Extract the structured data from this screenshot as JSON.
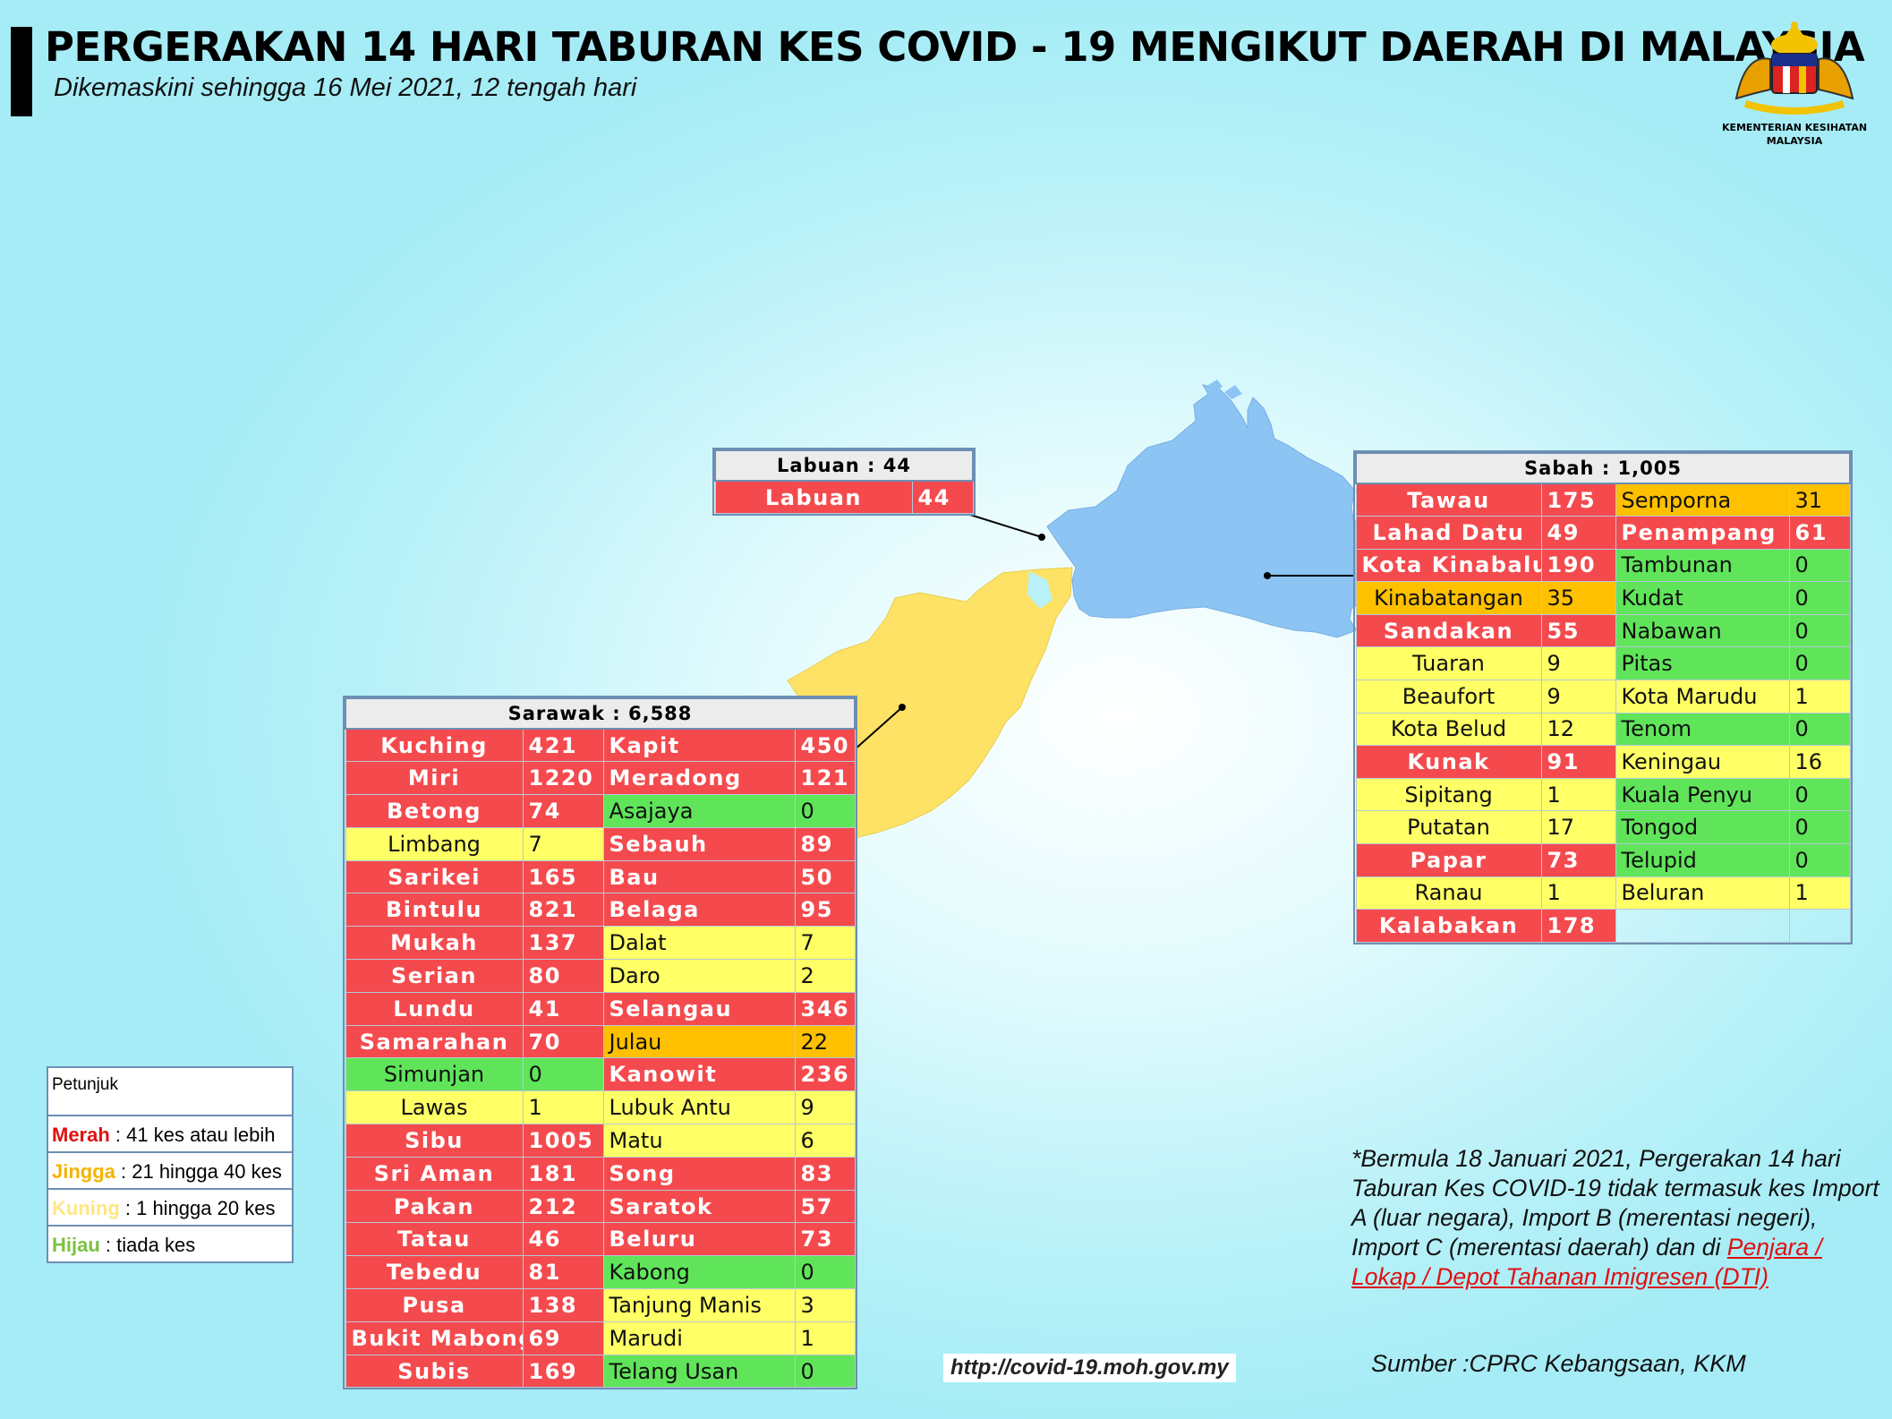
{
  "header": {
    "title": "PERGERAKAN 14 HARI TABURAN KES COVID - 19 MENGIKUT DAERAH DI MALAYSIA",
    "subtitle": "Dikemaskini sehingga 16 Mei 2021, 12 tengah hari",
    "logo_caption_1": "KEMENTERIAN KESIHATAN",
    "logo_caption_2": "MALAYSIA"
  },
  "colors": {
    "merah": "#f44a4e",
    "jingga": "#ffc000",
    "kuning": "#ffff66",
    "hijau": "#60e55a",
    "sabah_map": "#8cc4f4",
    "sarawak_map": "#fde265"
  },
  "labuan": {
    "header": "Labuan : 44",
    "rows": [
      {
        "name": "Labuan",
        "value": "44",
        "level": "r"
      }
    ]
  },
  "sabah": {
    "header": "Sabah : 1,005",
    "rows": [
      [
        {
          "name": "Tawau",
          "value": "175",
          "level": "r"
        },
        {
          "name": "Semporna",
          "value": "31",
          "level": "o"
        }
      ],
      [
        {
          "name": "Lahad Datu",
          "value": "49",
          "level": "r"
        },
        {
          "name": "Penampang",
          "value": "61",
          "level": "r"
        }
      ],
      [
        {
          "name": "Kota Kinabalu",
          "value": "190",
          "level": "r"
        },
        {
          "name": "Tambunan",
          "value": "0",
          "level": "g"
        }
      ],
      [
        {
          "name": "Kinabatangan",
          "value": "35",
          "level": "o"
        },
        {
          "name": "Kudat",
          "value": "0",
          "level": "g"
        }
      ],
      [
        {
          "name": "Sandakan",
          "value": "55",
          "level": "r"
        },
        {
          "name": "Nabawan",
          "value": "0",
          "level": "g"
        }
      ],
      [
        {
          "name": "Tuaran",
          "value": "9",
          "level": "y"
        },
        {
          "name": "Pitas",
          "value": "0",
          "level": "g"
        }
      ],
      [
        {
          "name": "Beaufort",
          "value": "9",
          "level": "y"
        },
        {
          "name": "Kota Marudu",
          "value": "1",
          "level": "y"
        }
      ],
      [
        {
          "name": "Kota Belud",
          "value": "12",
          "level": "y"
        },
        {
          "name": "Tenom",
          "value": "0",
          "level": "g"
        }
      ],
      [
        {
          "name": "Kunak",
          "value": "91",
          "level": "r"
        },
        {
          "name": "Keningau",
          "value": "16",
          "level": "y"
        }
      ],
      [
        {
          "name": "Sipitang",
          "value": "1",
          "level": "y"
        },
        {
          "name": "Kuala Penyu",
          "value": "0",
          "level": "g"
        }
      ],
      [
        {
          "name": "Putatan",
          "value": "17",
          "level": "y"
        },
        {
          "name": "Tongod",
          "value": "0",
          "level": "g"
        }
      ],
      [
        {
          "name": "Papar",
          "value": "73",
          "level": "r"
        },
        {
          "name": "Telupid",
          "value": "0",
          "level": "g"
        }
      ],
      [
        {
          "name": "Ranau",
          "value": "1",
          "level": "y"
        },
        {
          "name": "Beluran",
          "value": "1",
          "level": "y"
        }
      ],
      [
        {
          "name": "Kalabakan",
          "value": "178",
          "level": "r"
        },
        {
          "name": "",
          "value": "",
          "level": "blank"
        }
      ]
    ]
  },
  "sarawak": {
    "header": "Sarawak : 6,588",
    "rows": [
      [
        {
          "name": "Kuching",
          "value": "421",
          "level": "r"
        },
        {
          "name": "Kapit",
          "value": "450",
          "level": "r"
        }
      ],
      [
        {
          "name": "Miri",
          "value": "1220",
          "level": "r"
        },
        {
          "name": "Meradong",
          "value": "121",
          "level": "r"
        }
      ],
      [
        {
          "name": "Betong",
          "value": "74",
          "level": "r"
        },
        {
          "name": "Asajaya",
          "value": "0",
          "level": "g"
        }
      ],
      [
        {
          "name": "Limbang",
          "value": "7",
          "level": "y"
        },
        {
          "name": "Sebauh",
          "value": "89",
          "level": "r"
        }
      ],
      [
        {
          "name": "Sarikei",
          "value": "165",
          "level": "r"
        },
        {
          "name": "Bau",
          "value": "50",
          "level": "r"
        }
      ],
      [
        {
          "name": "Bintulu",
          "value": "821",
          "level": "r"
        },
        {
          "name": "Belaga",
          "value": "95",
          "level": "r"
        }
      ],
      [
        {
          "name": "Mukah",
          "value": "137",
          "level": "r"
        },
        {
          "name": "Dalat",
          "value": "7",
          "level": "y"
        }
      ],
      [
        {
          "name": "Serian",
          "value": "80",
          "level": "r"
        },
        {
          "name": "Daro",
          "value": "2",
          "level": "y"
        }
      ],
      [
        {
          "name": "Lundu",
          "value": "41",
          "level": "r"
        },
        {
          "name": "Selangau",
          "value": "346",
          "level": "r"
        }
      ],
      [
        {
          "name": "Samarahan",
          "value": "70",
          "level": "r"
        },
        {
          "name": "Julau",
          "value": "22",
          "level": "o"
        }
      ],
      [
        {
          "name": "Simunjan",
          "value": "0",
          "level": "g"
        },
        {
          "name": "Kanowit",
          "value": "236",
          "level": "r"
        }
      ],
      [
        {
          "name": "Lawas",
          "value": "1",
          "level": "y"
        },
        {
          "name": "Lubuk Antu",
          "value": "9",
          "level": "y"
        }
      ],
      [
        {
          "name": "Sibu",
          "value": "1005",
          "level": "r"
        },
        {
          "name": "Matu",
          "value": "6",
          "level": "y"
        }
      ],
      [
        {
          "name": "Sri Aman",
          "value": "181",
          "level": "r"
        },
        {
          "name": "Song",
          "value": "83",
          "level": "r"
        }
      ],
      [
        {
          "name": "Pakan",
          "value": "212",
          "level": "r"
        },
        {
          "name": "Saratok",
          "value": "57",
          "level": "r"
        }
      ],
      [
        {
          "name": "Tatau",
          "value": "46",
          "level": "r"
        },
        {
          "name": "Beluru",
          "value": "73",
          "level": "r"
        }
      ],
      [
        {
          "name": "Tebedu",
          "value": "81",
          "level": "r"
        },
        {
          "name": "Kabong",
          "value": "0",
          "level": "g"
        }
      ],
      [
        {
          "name": "Pusa",
          "value": "138",
          "level": "r"
        },
        {
          "name": "Tanjung Manis",
          "value": "3",
          "level": "y"
        }
      ],
      [
        {
          "name": "Bukit Mabong",
          "value": "69",
          "level": "r"
        },
        {
          "name": "Marudi",
          "value": "1",
          "level": "y"
        }
      ],
      [
        {
          "name": "Subis",
          "value": "169",
          "level": "r"
        },
        {
          "name": "Telang Usan",
          "value": "0",
          "level": "g"
        }
      ]
    ]
  },
  "legend": {
    "title": "Petunjuk",
    "items": [
      {
        "key": "Merah",
        "text": " : 41 kes atau lebih",
        "color": "#e01010"
      },
      {
        "key": "Jingga",
        "text": " : 21 hingga 40 kes",
        "color": "#f4b400"
      },
      {
        "key": "Kuning",
        "text": " : 1 hingga 20 kes",
        "color": "#ffe680"
      },
      {
        "key": "Hijau",
        "text": " : tiada kes",
        "color": "#7cc242"
      }
    ]
  },
  "note": {
    "text": "*Bermula 18 Januari 2021, Pergerakan 14 hari Taburan Kes COVID-19 tidak termasuk kes Import A (luar negara), Import B (merentasi negeri), Import C (merentasi daerah) dan di ",
    "link": "Penjara / Lokap / Depot Tahanan Imigresen (DTI)"
  },
  "source": "Sumber :CPRC Kebangsaan,  KKM",
  "url": "http://covid-19.moh.gov.my"
}
